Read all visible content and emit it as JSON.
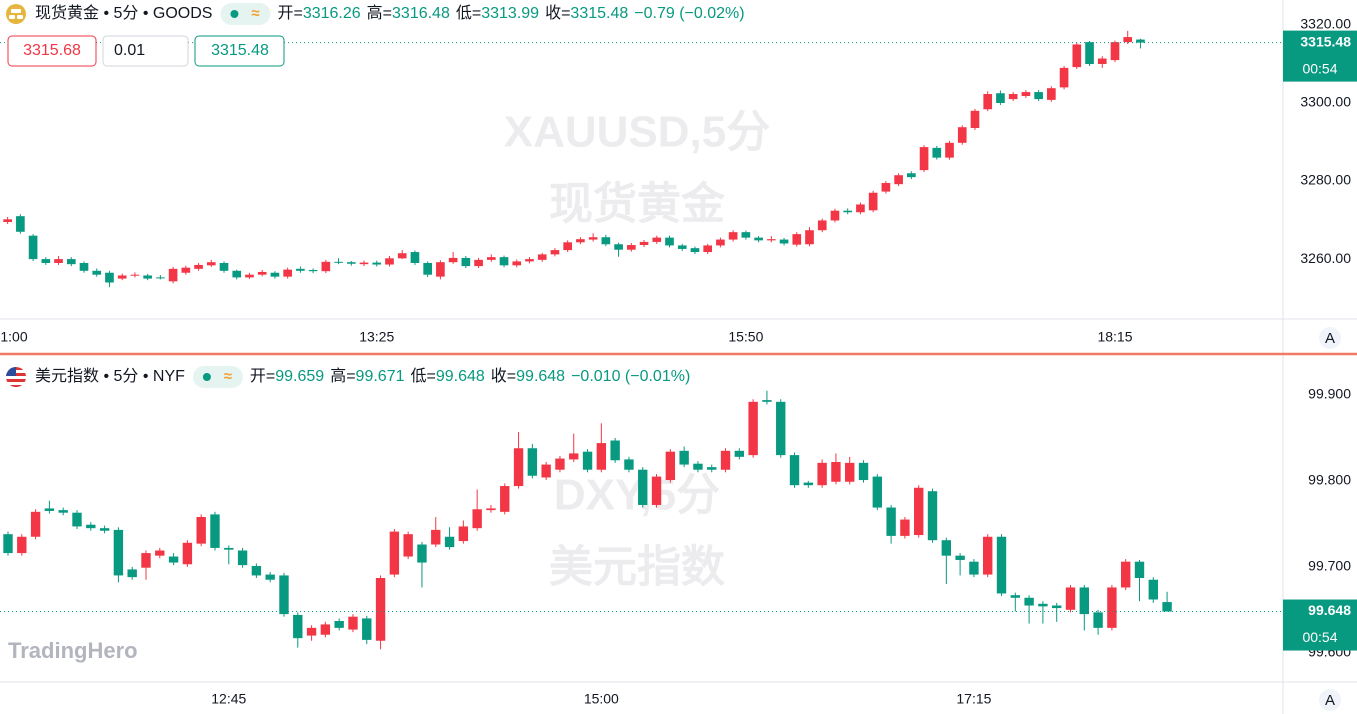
{
  "chart_data": [
    {
      "type": "candlestick",
      "symbol": "现货黄金 • 5分 • GOODS",
      "status": "≈",
      "ohlc_header": [
        {
          "label": "开=",
          "value": 3316.26
        },
        {
          "label": "高=",
          "value": 3316.48
        },
        {
          "label": "低=",
          "value": 3313.99
        },
        {
          "label": "收=",
          "value": 3315.48
        }
      ],
      "change": "−0.79 (−0.02%)",
      "watermark": [
        "XAUUSD,5分",
        "现货黄金"
      ],
      "up_color": "#f23645",
      "down_color": "#089981",
      "open": [
        3269.5,
        3271,
        3266,
        3260,
        3259,
        3260,
        3259,
        3257,
        3256.5,
        3255,
        3255.8,
        3255.8,
        3255.3,
        3254.3,
        3256.5,
        3257.5,
        3258.4,
        3259,
        3257,
        3255.3,
        3256,
        3256.5,
        3255.5,
        3257.5,
        3257.2,
        3256.9,
        3259.3,
        3259.2,
        3258.7,
        3259.1,
        3258.6,
        3260.2,
        3261.8,
        3259,
        3255.5,
        3259.2,
        3260.3,
        3258.2,
        3259.8,
        3260.5,
        3258.4,
        3259.4,
        3259.8,
        3261.2,
        3262.3,
        3264.3,
        3265,
        3265.6,
        3263.8,
        3262.4,
        3263.6,
        3264.4,
        3265.5,
        3263.5,
        3262.8,
        3261.8,
        3263.5,
        3265,
        3266.9,
        3265.5,
        3264.8,
        3265,
        3263.7,
        3263.8,
        3267.4,
        3269.9,
        3272.4,
        3272,
        3272.5,
        3277.3,
        3279.2,
        3282,
        3282.8,
        3288.5,
        3286,
        3289.8,
        3293.6,
        3298.4,
        3302.5,
        3301,
        3301.8,
        3302.8,
        3300.8,
        3304,
        3309.2,
        3315.6,
        3310,
        3311,
        3315.6,
        3316.26
      ],
      "high": [
        3270.8,
        3271.5,
        3266.4,
        3260.5,
        3260.8,
        3260.5,
        3259.4,
        3257.6,
        3257,
        3256.3,
        3256.6,
        3256.2,
        3255.9,
        3258,
        3258.3,
        3259,
        3259.8,
        3259.4,
        3257.3,
        3256.5,
        3257.2,
        3256.9,
        3257.8,
        3258.1,
        3257.6,
        3259.8,
        3260.2,
        3259.5,
        3259.6,
        3259.6,
        3260.8,
        3262.3,
        3262.2,
        3259.4,
        3259.7,
        3261.8,
        3260.8,
        3260.3,
        3261.2,
        3260.9,
        3259.9,
        3260.5,
        3261.6,
        3262.8,
        3264.8,
        3265.6,
        3266.6,
        3266.2,
        3264.2,
        3264.1,
        3264.9,
        3266,
        3266,
        3263.9,
        3263.2,
        3263.9,
        3265.5,
        3267.4,
        3267.3,
        3265.9,
        3265.9,
        3265.4,
        3266.9,
        3268.2,
        3270.4,
        3272.9,
        3273,
        3274.5,
        3277.5,
        3280,
        3282,
        3282.5,
        3289.2,
        3289,
        3290.3,
        3294.3,
        3298.5,
        3303,
        3303.2,
        3302.8,
        3303.3,
        3303.3,
        3304.3,
        3309.5,
        3315.5,
        3315.9,
        3312,
        3316,
        3318.5,
        3316.48
      ],
      "low": [
        3269,
        3266.5,
        3259.5,
        3258.5,
        3258.5,
        3258.2,
        3256.5,
        3255.5,
        3252.8,
        3254.6,
        3255.3,
        3254.6,
        3254.8,
        3253.8,
        3256,
        3257,
        3258,
        3256.5,
        3254.8,
        3254.9,
        3255.6,
        3255,
        3255,
        3256.5,
        3256.4,
        3256.4,
        3258.7,
        3258.3,
        3258.2,
        3258.1,
        3258.1,
        3260,
        3258.5,
        3255.4,
        3254.8,
        3258.8,
        3257.7,
        3257.7,
        3259.3,
        3257.9,
        3257.9,
        3258.9,
        3259.3,
        3260.7,
        3261.8,
        3263.8,
        3264.5,
        3263.3,
        3260.6,
        3261.9,
        3263.1,
        3263.9,
        3263,
        3262.1,
        3261.3,
        3261.3,
        3263,
        3264.5,
        3265,
        3264.3,
        3264.3,
        3263.5,
        3263.2,
        3263.3,
        3266.9,
        3269.4,
        3271.5,
        3271.5,
        3272,
        3276.8,
        3278.7,
        3280.5,
        3282.3,
        3285.5,
        3285.5,
        3289.3,
        3293.1,
        3297.9,
        3299.5,
        3300.5,
        3301.3,
        3300.5,
        3300.3,
        3303.5,
        3308.7,
        3309.5,
        3309,
        3310.5,
        3315.1,
        3313.99
      ],
      "close": [
        3270.2,
        3267,
        3260,
        3259,
        3260,
        3258.7,
        3257,
        3256,
        3254,
        3255.8,
        3256,
        3255,
        3255.2,
        3257.5,
        3257.8,
        3258.5,
        3259.2,
        3257,
        3255.3,
        3256,
        3256.7,
        3255.5,
        3257.3,
        3257,
        3256.9,
        3259.3,
        3259.2,
        3258.8,
        3259.1,
        3258.6,
        3260.2,
        3261.5,
        3259,
        3256,
        3259.2,
        3260.3,
        3258.2,
        3259.8,
        3260.5,
        3258.4,
        3259.4,
        3260,
        3261.2,
        3262.3,
        3264.3,
        3265.1,
        3265.6,
        3263.8,
        3262.4,
        3263.6,
        3264.4,
        3265.5,
        3263.5,
        3262.6,
        3261.8,
        3263.5,
        3265,
        3266.9,
        3265.5,
        3264.8,
        3265.1,
        3264,
        3266.4,
        3267.4,
        3269.9,
        3272.4,
        3272,
        3274,
        3277,
        3279.5,
        3281.5,
        3281,
        3288.7,
        3286,
        3289.8,
        3293.8,
        3298,
        3302.3,
        3300,
        3302.3,
        3302.8,
        3301,
        3303.8,
        3309,
        3315,
        3310,
        3311.4,
        3315.6,
        3316.9,
        3315.48
      ],
      "xlim": [
        -0.6,
        100.2
      ],
      "xticks": [
        {
          "value": 0.5,
          "label": "1:00"
        },
        {
          "value": 29,
          "label": "13:25"
        },
        {
          "value": 58,
          "label": "15:50"
        },
        {
          "value": 87,
          "label": "18:15"
        }
      ],
      "ylim": [
        3244.9,
        3326.4
      ],
      "yticks": [
        {
          "value": 3260,
          "label": "3260.00"
        },
        {
          "value": 3280,
          "label": "3280.00"
        },
        {
          "value": 3300,
          "label": "3300.00"
        },
        {
          "value": 3320,
          "label": "3320.00"
        }
      ],
      "last_price": 3315.48,
      "countdown": "00:54",
      "axis_button": "A"
    },
    {
      "type": "candlestick",
      "symbol": "美元指数 • 5分 • NYF",
      "status": "≈",
      "ohlc_header": [
        {
          "label": "开=",
          "value": 99.659
        },
        {
          "label": "高=",
          "value": 99.671
        },
        {
          "label": "低=",
          "value": 99.648
        },
        {
          "label": "收=",
          "value": 99.648
        }
      ],
      "change": "−0.010 (−0.01%)",
      "watermark": [
        "DXY,5分",
        "美元指数"
      ],
      "up_color": "#f23645",
      "down_color": "#089981",
      "open": [
        99.738,
        99.716,
        99.735,
        99.768,
        99.766,
        99.763,
        99.749,
        99.745,
        99.743,
        99.697,
        99.699,
        99.713,
        99.712,
        99.703,
        99.727,
        99.761,
        99.722,
        99.719,
        99.701,
        99.691,
        99.69,
        99.644,
        99.62,
        99.621,
        99.637,
        99.627,
        99.64,
        99.614,
        99.691,
        99.712,
        99.726,
        99.726,
        99.735,
        99.73,
        99.745,
        99.766,
        99.764,
        99.794,
        99.838,
        99.804,
        99.813,
        99.825,
        99.834,
        99.813,
        99.847,
        99.825,
        99.813,
        99.772,
        99.801,
        99.835,
        99.82,
        99.816,
        99.813,
        99.835,
        99.83,
        99.894,
        99.892,
        99.83,
        99.798,
        99.795,
        99.799,
        99.799,
        99.821,
        99.805,
        99.769,
        99.736,
        99.737,
        99.788,
        99.731,
        99.713,
        99.706,
        99.691,
        99.735,
        99.667,
        99.664,
        99.657,
        99.655,
        99.65,
        99.676,
        99.647,
        99.629,
        99.676,
        99.706,
        99.685,
        99.659
      ],
      "high": [
        99.741,
        99.738,
        99.767,
        99.777,
        99.769,
        99.766,
        99.752,
        99.748,
        99.746,
        99.7,
        99.719,
        99.722,
        99.716,
        99.731,
        99.761,
        99.764,
        99.725,
        99.722,
        99.704,
        99.694,
        99.693,
        99.647,
        99.632,
        99.636,
        99.64,
        99.645,
        99.643,
        99.69,
        99.744,
        99.741,
        99.729,
        99.758,
        99.746,
        99.754,
        99.79,
        99.772,
        99.797,
        99.857,
        99.843,
        99.822,
        99.829,
        99.855,
        99.837,
        99.867,
        99.85,
        99.828,
        99.816,
        99.808,
        99.837,
        99.84,
        99.823,
        99.819,
        99.838,
        99.838,
        99.895,
        99.905,
        99.895,
        99.833,
        99.8,
        99.825,
        99.832,
        99.828,
        99.824,
        99.808,
        99.772,
        99.758,
        99.795,
        99.791,
        99.734,
        99.716,
        99.709,
        99.738,
        99.738,
        99.67,
        99.667,
        99.66,
        99.658,
        99.679,
        99.679,
        99.65,
        99.679,
        99.709,
        99.708,
        99.688,
        99.671
      ],
      "low": [
        99.713,
        99.713,
        99.732,
        99.762,
        99.76,
        99.744,
        99.742,
        99.739,
        99.682,
        99.685,
        99.685,
        99.71,
        99.702,
        99.7,
        99.724,
        99.719,
        99.703,
        99.699,
        99.687,
        99.682,
        99.642,
        99.606,
        99.614,
        99.618,
        99.626,
        99.624,
        99.61,
        99.604,
        99.688,
        99.709,
        99.676,
        99.723,
        99.72,
        99.727,
        99.742,
        99.763,
        99.761,
        99.791,
        99.803,
        99.801,
        99.81,
        99.822,
        99.81,
        99.81,
        99.821,
        99.81,
        99.769,
        99.769,
        99.798,
        99.816,
        99.81,
        99.81,
        99.81,
        99.825,
        99.827,
        99.889,
        99.827,
        99.792,
        99.792,
        99.792,
        99.796,
        99.796,
        99.798,
        99.766,
        99.727,
        99.733,
        99.734,
        99.728,
        99.68,
        99.69,
        99.688,
        99.688,
        99.666,
        99.648,
        99.634,
        99.634,
        99.636,
        99.647,
        99.626,
        99.621,
        99.626,
        99.673,
        99.66,
        99.658,
        99.648
      ],
      "close": [
        99.716,
        99.735,
        99.764,
        99.765,
        99.763,
        99.747,
        99.745,
        99.742,
        99.69,
        99.688,
        99.716,
        99.719,
        99.705,
        99.728,
        99.758,
        99.722,
        99.72,
        99.702,
        99.69,
        99.685,
        99.645,
        99.617,
        99.629,
        99.633,
        99.629,
        99.642,
        99.615,
        99.687,
        99.741,
        99.738,
        99.705,
        99.743,
        99.723,
        99.747,
        99.767,
        99.768,
        99.794,
        99.838,
        99.806,
        99.819,
        99.826,
        99.832,
        99.813,
        99.844,
        99.824,
        99.813,
        99.772,
        99.805,
        99.834,
        99.819,
        99.813,
        99.813,
        99.835,
        99.828,
        99.892,
        99.892,
        99.83,
        99.795,
        99.795,
        99.821,
        99.822,
        99.821,
        99.801,
        99.769,
        99.736,
        99.755,
        99.792,
        99.731,
        99.713,
        99.708,
        99.691,
        99.735,
        99.669,
        99.664,
        99.655,
        99.654,
        99.652,
        99.676,
        99.645,
        99.629,
        99.676,
        99.706,
        99.687,
        99.662,
        99.648
      ],
      "xlim": [
        -0.58,
        92.4
      ],
      "xticks": [
        {
          "value": 16,
          "label": "12:45"
        },
        {
          "value": 43,
          "label": "15:00"
        },
        {
          "value": 70,
          "label": "17:15"
        }
      ],
      "ylim": [
        99.566,
        99.943
      ],
      "yticks": [
        {
          "value": 99.6,
          "label": "99.600"
        },
        {
          "value": 99.7,
          "label": "99.700"
        },
        {
          "value": 99.8,
          "label": "99.800"
        },
        {
          "value": 99.9,
          "label": "99.900"
        }
      ],
      "last_price": 99.648,
      "countdown": "00:54",
      "axis_button": "A"
    }
  ],
  "order_panel": {
    "sell": 3315.68,
    "quantity": 0.01,
    "buy": 3315.48
  },
  "brand": "TradingHero"
}
